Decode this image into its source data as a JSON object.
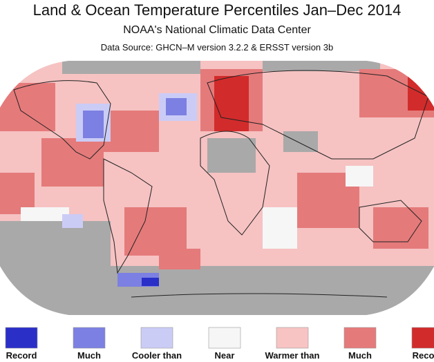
{
  "header": {
    "title": "Land & Ocean Temperature Percentiles Jan–Dec 2014",
    "subtitle": "NOAA's National Climatic Data Center",
    "source": "Data Source: GHCN–M version 3.2.2 & ERSST version 3b"
  },
  "legend": {
    "items": [
      {
        "label": "Record",
        "color": "#2a2fc8"
      },
      {
        "label": "Much",
        "color": "#7c80e2"
      },
      {
        "label": "Cooler than",
        "color": "#cbccf6"
      },
      {
        "label": "Near",
        "color": "#f6f6f6"
      },
      {
        "label": "Warmer than",
        "color": "#f7c3c3"
      },
      {
        "label": "Much",
        "color": "#e57a7a"
      },
      {
        "label": "Record",
        "color": "#d22b2b"
      }
    ]
  }
}
